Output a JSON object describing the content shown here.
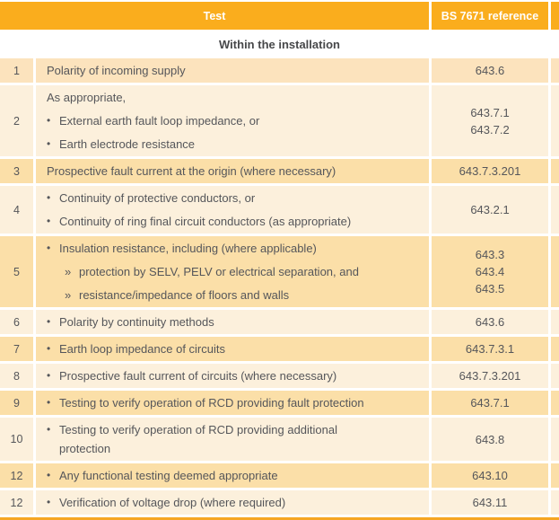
{
  "table": {
    "header": {
      "test_label": "Test",
      "reference_label": "BS 7671 reference"
    },
    "section_title": "Within the installation",
    "bullet_glyph": "•",
    "sub_bullet_glyph": "»",
    "rows": [
      {
        "num": "1",
        "lines": [
          {
            "marker": "none",
            "text": "Polarity of incoming supply"
          }
        ],
        "refs": [
          "643.6"
        ]
      },
      {
        "num": "2",
        "lines": [
          {
            "marker": "none",
            "text": "As appropriate,"
          },
          {
            "marker": "bullet",
            "text": "External earth fault loop impedance, or"
          },
          {
            "marker": "bullet",
            "text": "Earth electrode resistance"
          }
        ],
        "refs": [
          "643.7.1",
          "643.7.2"
        ]
      },
      {
        "num": "3",
        "lines": [
          {
            "marker": "none",
            "text": "Prospective fault current at the origin (where necessary)"
          }
        ],
        "refs": [
          "643.7.3.201"
        ]
      },
      {
        "num": "4",
        "lines": [
          {
            "marker": "bullet",
            "text": "Continuity of protective conductors, or"
          },
          {
            "marker": "bullet",
            "text": "Continuity of ring final circuit conductors (as appropriate)"
          }
        ],
        "refs": [
          "643.2.1"
        ]
      },
      {
        "num": "5",
        "lines": [
          {
            "marker": "bullet",
            "text": "Insulation resistance, including (where applicable)"
          },
          {
            "marker": "sub",
            "text": "protection by SELV, PELV or electrical separation, and"
          },
          {
            "marker": "sub",
            "text": "resistance/impedance of floors and walls"
          }
        ],
        "refs": [
          "643.3",
          "643.4",
          "643.5"
        ]
      },
      {
        "num": "6",
        "lines": [
          {
            "marker": "bullet",
            "text": "Polarity by continuity methods"
          }
        ],
        "refs": [
          "643.6"
        ]
      },
      {
        "num": "7",
        "lines": [
          {
            "marker": "bullet",
            "text": "Earth loop impedance of circuits"
          }
        ],
        "refs": [
          "643.7.3.1"
        ]
      },
      {
        "num": "8",
        "lines": [
          {
            "marker": "bullet",
            "text": "Prospective fault current of circuits (where necessary)"
          }
        ],
        "refs": [
          "643.7.3.201"
        ]
      },
      {
        "num": "9",
        "lines": [
          {
            "marker": "bullet",
            "text": "Testing to verify operation of RCD providing fault protection"
          }
        ],
        "refs": [
          "643.7.1"
        ]
      },
      {
        "num": "10",
        "lines": [
          {
            "marker": "bullet",
            "text": "Testing to verify operation of RCD providing additional"
          },
          {
            "marker": "cont",
            "text": "protection"
          }
        ],
        "refs": [
          "643.8"
        ],
        "tight": true
      },
      {
        "num": "12",
        "lines": [
          {
            "marker": "bullet",
            "text": "Any functional testing deemed appropriate"
          }
        ],
        "refs": [
          "643.10"
        ]
      },
      {
        "num": "12",
        "lines": [
          {
            "marker": "bullet",
            "text": "Verification of voltage drop (where required)"
          }
        ],
        "refs": [
          "643.11"
        ]
      }
    ]
  },
  "colors": {
    "header_bg": "#FAAD1D",
    "row_gold": "#FBDFA8",
    "row_cream": "#FCF0DC",
    "row_first": "#FCE3BD",
    "bottom_bar": "#F6A623",
    "text": "#55565A"
  }
}
